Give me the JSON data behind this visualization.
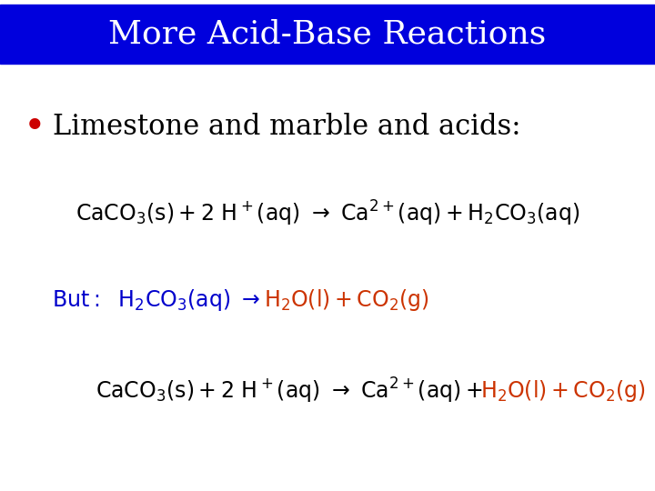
{
  "title": "More Acid-Base Reactions",
  "title_bg_color": "#0000dd",
  "title_text_color": "#ffffff",
  "bg_color": "#ffffff",
  "bullet_color": "#cc0000",
  "bullet_text": "Limestone and marble and acids:",
  "bullet_text_color": "#000000",
  "blue_color": "#0000cc",
  "red_color": "#cc3300",
  "font_size_title": 26,
  "font_size_bullet": 22,
  "font_size_eq": 17
}
